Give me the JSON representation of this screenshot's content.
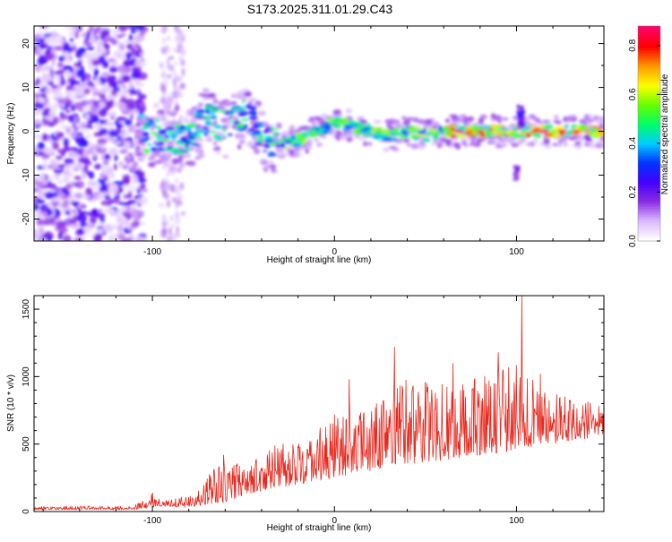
{
  "title": "S173.2025.311.01.29.C43",
  "chart_data": [
    {
      "type": "heatmap",
      "xlabel": "Height of straight line (km)",
      "ylabel": "Frequency (Hz)",
      "xlim": [
        -165,
        148
      ],
      "ylim": [
        -25,
        24
      ],
      "xticks": [
        -100,
        0,
        100
      ],
      "yticks": [
        -20,
        -10,
        0,
        10,
        20
      ],
      "colorbar": {
        "label": "Normalized spectral amplitude",
        "range": [
          0.0,
          0.88
        ],
        "ticks": [
          0.0,
          0.2,
          0.4,
          0.6,
          0.8
        ],
        "colors": [
          "#ffffff",
          "#d9b8ff",
          "#8a2be2",
          "#4400ff",
          "#0033ff",
          "#00ccff",
          "#00ff66",
          "#66ff00",
          "#ffff00",
          "#ff9900",
          "#ff0000",
          "#ff0066"
        ]
      },
      "ridge": {
        "description_points_km_hz": [
          [
            -105,
            -1.5
          ],
          [
            -100,
            -1
          ],
          [
            -90,
            -1
          ],
          [
            -80,
            -2
          ],
          [
            -70,
            3
          ],
          [
            -60,
            1
          ],
          [
            -50,
            4
          ],
          [
            -45,
            3
          ],
          [
            -40,
            -2
          ],
          [
            -30,
            -3
          ],
          [
            -20,
            -2
          ],
          [
            -10,
            0
          ],
          [
            0,
            2
          ],
          [
            10,
            1
          ],
          [
            20,
            0
          ],
          [
            30,
            -1
          ],
          [
            40,
            0
          ],
          [
            50,
            -1
          ],
          [
            60,
            0
          ],
          [
            70,
            0
          ],
          [
            80,
            0
          ],
          [
            90,
            0
          ],
          [
            100,
            0
          ],
          [
            110,
            0
          ],
          [
            120,
            0
          ],
          [
            148,
            0
          ]
        ]
      }
    },
    {
      "type": "line",
      "xlabel": "Height of straight line (km)",
      "ylabel": "SNR (10 * v/v)",
      "xlim": [
        -165,
        148
      ],
      "ylim": [
        0,
        1600
      ],
      "xticks": [
        -100,
        0,
        100
      ],
      "yticks": [
        0,
        500,
        1000,
        1500
      ],
      "line_color": "#e8281e",
      "envelope": {
        "x": [
          -165,
          -110,
          -100,
          -95,
          -80,
          -60,
          -50,
          -40,
          -20,
          0,
          20,
          40,
          60,
          80,
          100,
          120,
          148
        ],
        "baseline": [
          15,
          15,
          30,
          40,
          30,
          70,
          120,
          150,
          200,
          250,
          300,
          350,
          380,
          420,
          450,
          500,
          560
        ],
        "peak": [
          40,
          40,
          140,
          80,
          120,
          420,
          380,
          480,
          520,
          700,
          800,
          1000,
          950,
          1000,
          1100,
          900,
          780
        ]
      },
      "spikes": [
        {
          "x": -100,
          "y": 140
        },
        {
          "x": -61,
          "y": 420
        },
        {
          "x": 0,
          "y": 720
        },
        {
          "x": 8,
          "y": 980
        },
        {
          "x": 33,
          "y": 1220
        },
        {
          "x": 65,
          "y": 1100
        },
        {
          "x": 90,
          "y": 1180
        },
        {
          "x": 103,
          "y": 1600
        },
        {
          "x": 113,
          "y": 1020
        }
      ]
    }
  ]
}
